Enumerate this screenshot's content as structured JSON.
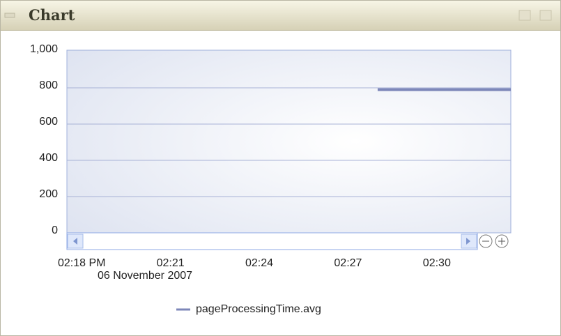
{
  "panel": {
    "title": "Chart"
  },
  "chart_data": {
    "type": "line",
    "x_sublabel": "06 November 2007",
    "xlim": [
      "2007-11-06T14:17:30",
      "2007-11-06T14:32:30"
    ],
    "xticks": [
      {
        "value": "2007-11-06T14:18",
        "label": "02:18 PM"
      },
      {
        "value": "2007-11-06T14:21",
        "label": "02:21"
      },
      {
        "value": "2007-11-06T14:24",
        "label": "02:24"
      },
      {
        "value": "2007-11-06T14:27",
        "label": "02:27"
      },
      {
        "value": "2007-11-06T14:30",
        "label": "02:30"
      }
    ],
    "ylim": [
      0,
      1000
    ],
    "yticks": [
      0,
      200,
      400,
      600,
      800,
      {
        "value": 1000,
        "label": "1,000"
      }
    ],
    "grid": true,
    "legend": "bottom",
    "series": [
      {
        "name": "pageProcessingTime.avg",
        "color": "#7d87b9",
        "x": [
          "2007-11-06T14:28",
          "2007-11-06T14:32:30"
        ],
        "values": [
          790,
          790
        ]
      }
    ]
  }
}
